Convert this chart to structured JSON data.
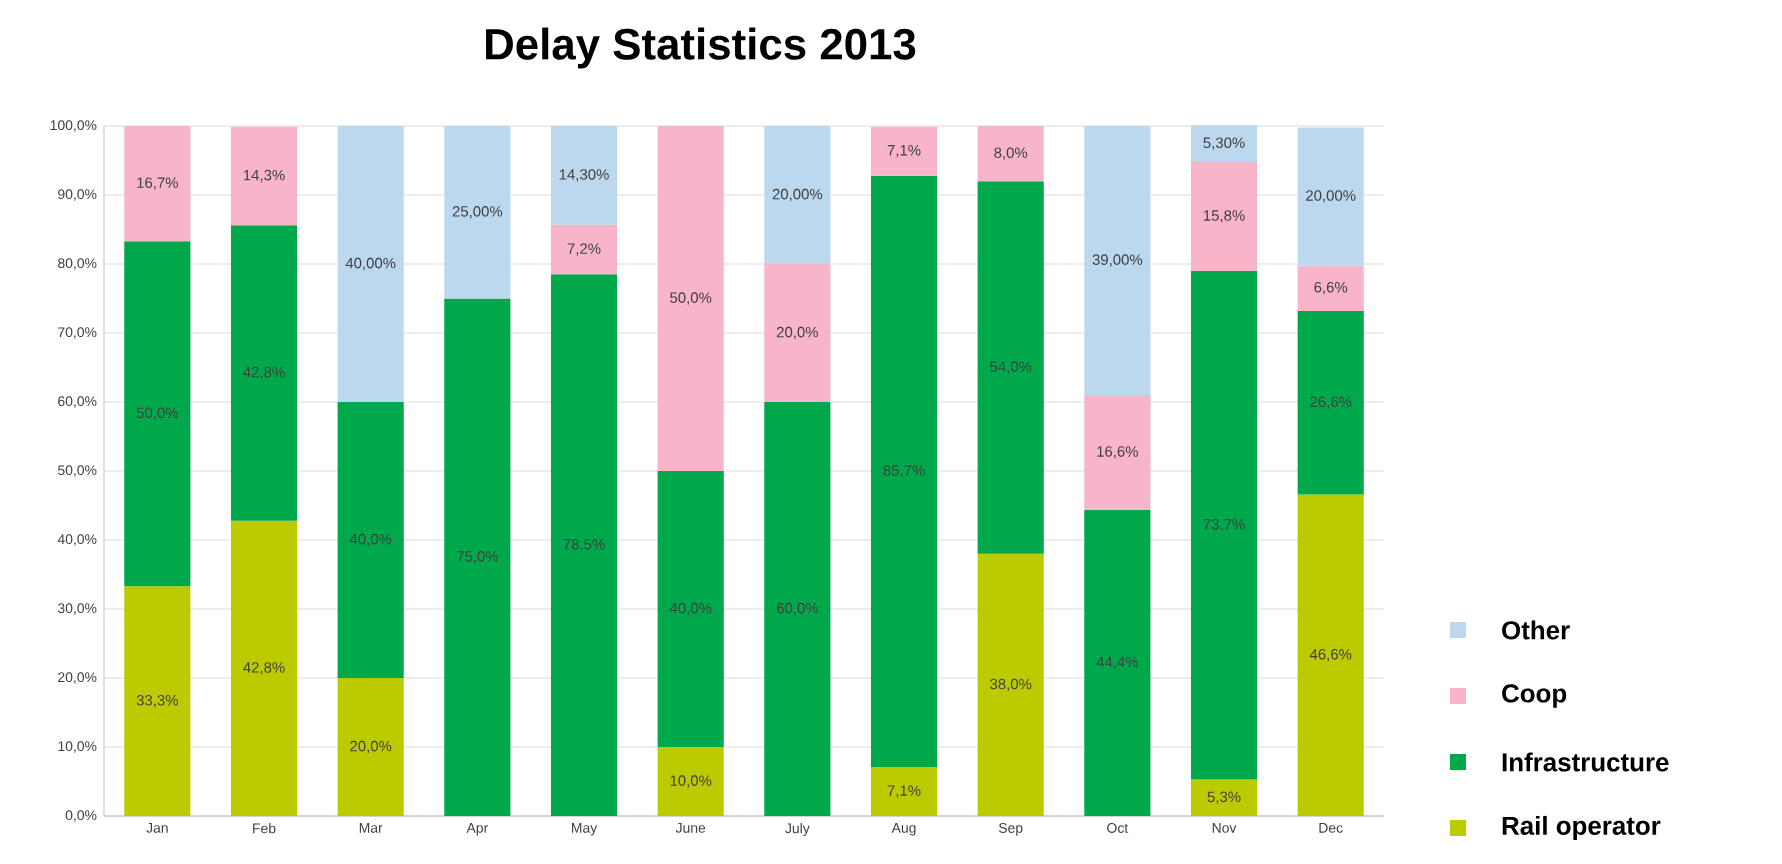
{
  "chart_data": {
    "type": "bar",
    "stacked": true,
    "title": "Delay Statistics 2013",
    "categories": [
      "Jan",
      "Feb",
      "Mar",
      "Apr",
      "May",
      "June",
      "July",
      "Aug",
      "Sep",
      "Oct",
      "Nov",
      "Dec"
    ],
    "ylim": [
      0,
      100
    ],
    "yticks": [
      {
        "value": 0,
        "label": "0,0%"
      },
      {
        "value": 10,
        "label": "10,0%"
      },
      {
        "value": 20,
        "label": "20,0%"
      },
      {
        "value": 30,
        "label": "30,0%"
      },
      {
        "value": 40,
        "label": "40,0%"
      },
      {
        "value": 50,
        "label": "50,0%"
      },
      {
        "value": 60,
        "label": "60,0%"
      },
      {
        "value": 70,
        "label": "70,0%"
      },
      {
        "value": 80,
        "label": "80,0%"
      },
      {
        "value": 90,
        "label": "90,0%"
      },
      {
        "value": 100,
        "label": "100,0%"
      }
    ],
    "grid": "y",
    "legend": "right",
    "series": [
      {
        "name": "Rail operator",
        "color": "#bccb00",
        "values": [
          33.3,
          42.8,
          20.0,
          null,
          null,
          10.0,
          null,
          7.1,
          38.0,
          null,
          5.3,
          46.6
        ],
        "value_labels": [
          "33,3%",
          "42,8%",
          "20,0%",
          null,
          null,
          "10,0%",
          null,
          "7,1%",
          "38,0%",
          null,
          "5,3%",
          "46,6%"
        ]
      },
      {
        "name": "Infrastructure",
        "color": "#00a84c",
        "values": [
          50.0,
          42.8,
          40.0,
          75.0,
          78.5,
          40.0,
          60.0,
          85.7,
          54.0,
          44.4,
          73.7,
          26.6
        ],
        "value_labels": [
          "50,0%",
          "42,8%",
          "40,0%",
          "75,0%",
          "78,5%",
          "40,0%",
          "60,0%",
          "85,7%",
          "54,0%",
          "44,4%",
          "73,7%",
          "26,6%"
        ]
      },
      {
        "name": "Coop",
        "color": "#f8b4c8",
        "values": [
          16.7,
          14.3,
          null,
          null,
          7.2,
          50.0,
          20.0,
          7.1,
          8.0,
          16.6,
          15.8,
          6.6
        ],
        "value_labels": [
          "16,7%",
          "14,3%",
          null,
          null,
          "7,2%",
          "50,0%",
          "20,0%",
          "7,1%",
          "8,0%",
          "16,6%",
          "15,8%",
          "6,6%"
        ]
      },
      {
        "name": "Other",
        "color": "#bcd8ee",
        "values": [
          null,
          null,
          40.0,
          25.0,
          14.3,
          null,
          20.0,
          null,
          null,
          39.0,
          5.3,
          20.0
        ],
        "value_labels": [
          null,
          null,
          "40,00%",
          "25,00%",
          "14,30%",
          null,
          "20,00%",
          null,
          null,
          "39,00%",
          "5,30%",
          "20,00%"
        ]
      }
    ]
  }
}
